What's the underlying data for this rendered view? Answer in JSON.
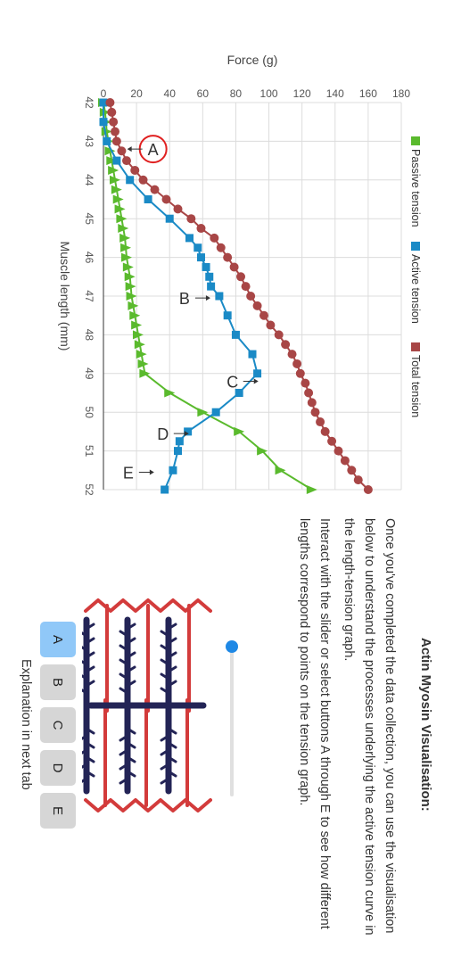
{
  "chart_data": {
    "type": "line",
    "xlabel": "Muscle length (mm)",
    "ylabel": "Force (g)",
    "xlim": [
      42,
      52
    ],
    "ylim": [
      0,
      180
    ],
    "xticks": [
      42,
      43,
      44,
      45,
      46,
      47,
      48,
      49,
      50,
      51,
      52
    ],
    "yticks": [
      0,
      20,
      40,
      60,
      80,
      100,
      120,
      140,
      160,
      180
    ],
    "grid": true,
    "legend_position": "top",
    "series": [
      {
        "name": "Passive tension",
        "color": "#5aba2d",
        "marker": "triangle",
        "x": [
          42,
          42.25,
          42.5,
          42.75,
          43,
          43.25,
          43.5,
          43.75,
          44,
          44.25,
          44.5,
          44.75,
          45,
          45.25,
          45.5,
          45.75,
          46,
          46.25,
          46.5,
          46.75,
          47,
          47.25,
          47.5,
          47.75,
          48,
          48.25,
          48.5,
          48.75,
          49,
          49.5,
          50,
          50.5,
          51,
          51.5,
          52
        ],
        "y": [
          0,
          1,
          1.5,
          2,
          3,
          4,
          5,
          6,
          7,
          8,
          9,
          10,
          11,
          12,
          13,
          13.5,
          14,
          15,
          16,
          16.5,
          17,
          18,
          19,
          20,
          21,
          22,
          23,
          24,
          25,
          40,
          60,
          82,
          96,
          107,
          126
        ]
      },
      {
        "name": "Active tension",
        "color": "#1a8ac6",
        "marker": "square",
        "x": [
          42,
          42.5,
          43,
          43.5,
          44,
          44.5,
          45,
          45.5,
          45.75,
          46,
          46.25,
          46.5,
          46.75,
          47,
          47.5,
          48,
          48.5,
          49,
          49.5,
          50,
          50.5,
          50.75,
          51,
          51.5,
          52
        ],
        "y": [
          0,
          0,
          2,
          8,
          16,
          27,
          40,
          52,
          57,
          59,
          62,
          64,
          65,
          70,
          75,
          80,
          90,
          93,
          82,
          68,
          51,
          46,
          45,
          42,
          37
        ]
      },
      {
        "name": "Total tension",
        "color": "#a84646",
        "marker": "circle",
        "x": [
          42,
          42.25,
          42.5,
          42.75,
          43,
          43.25,
          43.5,
          43.75,
          44,
          44.25,
          44.5,
          44.75,
          45,
          45.25,
          45.5,
          45.75,
          46,
          46.25,
          46.5,
          46.75,
          47,
          47.25,
          47.5,
          47.75,
          48,
          48.25,
          48.5,
          48.75,
          49,
          49.25,
          49.5,
          49.75,
          50,
          50.25,
          50.5,
          50.75,
          51,
          51.25,
          51.5,
          51.75,
          52
        ],
        "y": [
          4,
          5,
          6,
          7,
          8,
          11,
          14,
          19,
          24,
          31,
          38,
          45,
          53,
          59,
          67,
          71,
          75,
          79,
          83,
          86,
          89,
          93,
          97,
          101,
          106,
          110,
          114,
          117,
          119,
          122,
          124,
          126,
          128,
          131,
          134,
          138,
          142,
          146,
          150,
          154,
          160
        ]
      }
    ],
    "annotations": [
      {
        "label": "A",
        "x": 43.2,
        "y": 30,
        "arrow": "left",
        "circled": true
      },
      {
        "label": "B",
        "x": 47.05,
        "y": 49,
        "arrow": "right",
        "circled": false
      },
      {
        "label": "C",
        "x": 49.2,
        "y": 78,
        "arrow": "right",
        "circled": false
      },
      {
        "label": "D",
        "x": 50.55,
        "y": 36,
        "arrow": "right",
        "circled": false
      },
      {
        "label": "E",
        "x": 51.55,
        "y": 15,
        "arrow": "right",
        "circled": false
      }
    ]
  },
  "panel": {
    "title": "Actin Myosin Visualisation:",
    "paragraph1": "Once you've completed the data collection, you can use the visualisation below to understand the processes underlying the active tension curve in the length-tension graph.",
    "paragraph2": "Interact with the slider or select buttons A through E to see how different lengths correspond to points on the tension graph.",
    "slider_value": 0,
    "buttons": [
      "A",
      "B",
      "C",
      "D",
      "E"
    ],
    "selected_button": "A",
    "explanation": "Explanation in next tab"
  },
  "colors": {
    "actin": "#d33b3b",
    "myosin": "#232456",
    "button_selected": "#90c8f8",
    "button_default": "#d6d6d6",
    "slider": "#1e88e5"
  },
  "icons": {
    "annotation_arrow": "arrow-icon",
    "legend_swatch": "square-swatch-icon"
  }
}
